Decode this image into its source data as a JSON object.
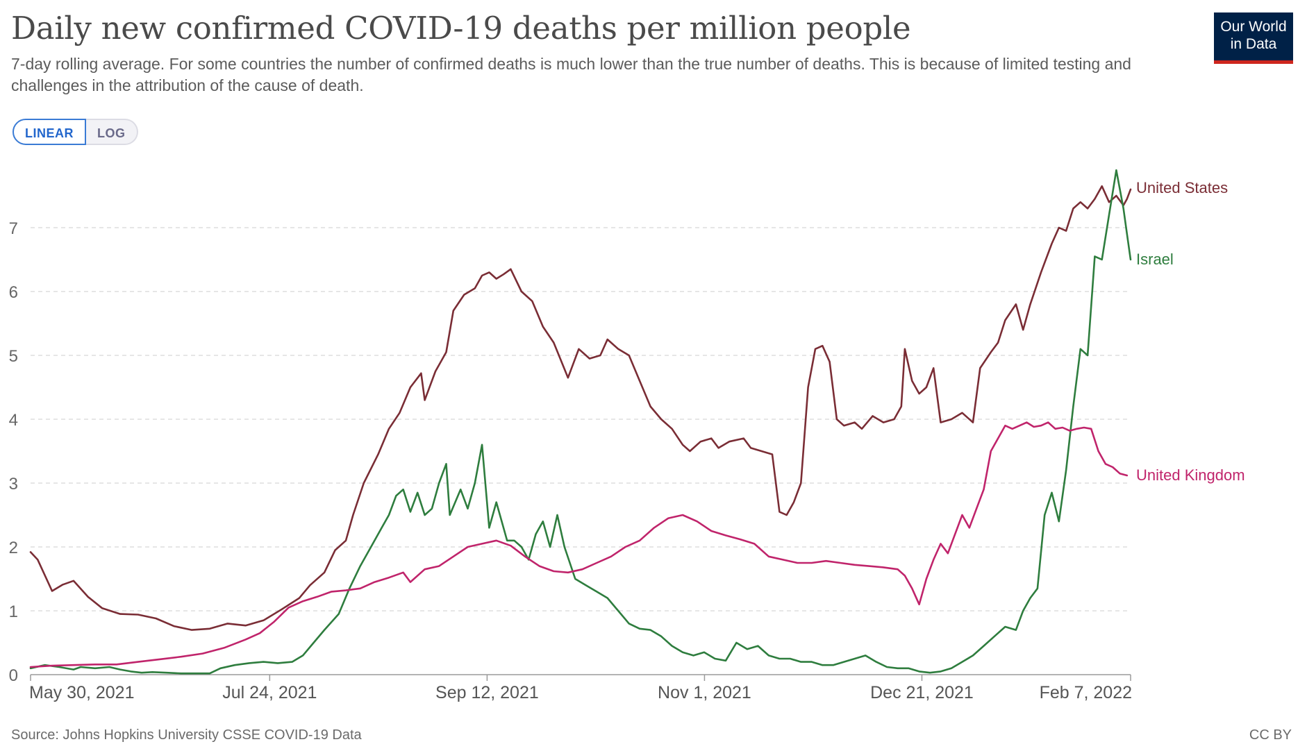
{
  "header": {
    "title": "Daily new confirmed COVID-19 deaths per million people",
    "subtitle": "7-day rolling average. For some countries the number of confirmed deaths is much lower than the true number of deaths. This is because of limited testing and challenges in the attribution of the cause of death.",
    "logo_line1": "Our World",
    "logo_line2": "in Data"
  },
  "controls": {
    "linear_label": "LINEAR",
    "log_label": "LOG",
    "selected": "LINEAR"
  },
  "footer": {
    "source": "Source: Johns Hopkins University CSSE COVID-19 Data",
    "license": "CC BY"
  },
  "chart_data": {
    "type": "line",
    "title": "Daily new confirmed COVID-19 deaths per million people",
    "x_tick_labels": [
      "May 30, 2021",
      "Jul 24, 2021",
      "Sep 12, 2021",
      "Nov 1, 2021",
      "Dec 21, 2021",
      "Feb 7, 2022"
    ],
    "x_tick_day_index": [
      0,
      55,
      105,
      155,
      205,
      253
    ],
    "xlim_day_index": [
      0,
      253
    ],
    "y_ticks": [
      0,
      1,
      2,
      3,
      4,
      5,
      6,
      7
    ],
    "ylim": [
      0,
      7.8
    ],
    "grid": "horizontal-dashed",
    "legend": "inline-right",
    "series": [
      {
        "name": "United States",
        "color": "#7a2d35",
        "points": [
          [
            0,
            1.92
          ],
          [
            2,
            1.8
          ],
          [
            6,
            1.31
          ],
          [
            9,
            1.41
          ],
          [
            12,
            1.47
          ],
          [
            16,
            1.22
          ],
          [
            20,
            1.04
          ],
          [
            25,
            0.95
          ],
          [
            30,
            0.94
          ],
          [
            35,
            0.88
          ],
          [
            40,
            0.76
          ],
          [
            45,
            0.7
          ],
          [
            50,
            0.72
          ],
          [
            55,
            0.8
          ],
          [
            60,
            0.77
          ],
          [
            65,
            0.85
          ],
          [
            70,
            1.02
          ],
          [
            75,
            1.2
          ],
          [
            78,
            1.4
          ],
          [
            82,
            1.6
          ],
          [
            85,
            1.95
          ],
          [
            88,
            2.1
          ],
          [
            90,
            2.5
          ],
          [
            93,
            3.0
          ],
          [
            97,
            3.45
          ],
          [
            100,
            3.85
          ],
          [
            103,
            4.1
          ],
          [
            106,
            4.5
          ],
          [
            109,
            4.72
          ],
          [
            110,
            4.3
          ],
          [
            113,
            4.75
          ],
          [
            116,
            5.05
          ],
          [
            118,
            5.7
          ],
          [
            121,
            5.95
          ],
          [
            124,
            6.05
          ],
          [
            126,
            6.25
          ],
          [
            128,
            6.3
          ],
          [
            130,
            6.2
          ],
          [
            132,
            6.27
          ],
          [
            134,
            6.35
          ],
          [
            137,
            6.0
          ],
          [
            140,
            5.85
          ],
          [
            143,
            5.45
          ],
          [
            146,
            5.2
          ],
          [
            150,
            4.65
          ],
          [
            153,
            5.1
          ],
          [
            156,
            4.95
          ],
          [
            159,
            5.0
          ],
          [
            161,
            5.25
          ],
          [
            164,
            5.1
          ],
          [
            167,
            5.0
          ],
          [
            170,
            4.6
          ],
          [
            173,
            4.2
          ],
          [
            176,
            4.0
          ],
          [
            179,
            3.85
          ],
          [
            182,
            3.6
          ],
          [
            184,
            3.5
          ],
          [
            187,
            3.65
          ],
          [
            190,
            3.7
          ],
          [
            192,
            3.55
          ],
          [
            195,
            3.65
          ],
          [
            199,
            3.7
          ],
          [
            201,
            3.55
          ],
          [
            204,
            3.5
          ],
          [
            207,
            3.45
          ],
          [
            209,
            2.55
          ],
          [
            211,
            2.5
          ],
          [
            213,
            2.7
          ],
          [
            215,
            3.0
          ],
          [
            217,
            4.5
          ],
          [
            219,
            5.1
          ],
          [
            221,
            5.15
          ],
          [
            223,
            4.9
          ],
          [
            225,
            4.0
          ],
          [
            227,
            3.9
          ],
          [
            230,
            3.95
          ],
          [
            232,
            3.85
          ],
          [
            235,
            4.05
          ],
          [
            238,
            3.95
          ],
          [
            241,
            4.0
          ],
          [
            243,
            4.2
          ],
          [
            244,
            5.1
          ],
          [
            246,
            4.6
          ],
          [
            248,
            4.4
          ],
          [
            250,
            4.5
          ],
          [
            252,
            4.8
          ],
          [
            254,
            3.95
          ],
          [
            257,
            4.0
          ],
          [
            260,
            4.1
          ],
          [
            263,
            3.95
          ],
          [
            265,
            4.8
          ],
          [
            268,
            5.05
          ],
          [
            270,
            5.2
          ],
          [
            272,
            5.55
          ],
          [
            275,
            5.8
          ],
          [
            277,
            5.4
          ],
          [
            279,
            5.8
          ],
          [
            282,
            6.3
          ],
          [
            285,
            6.75
          ],
          [
            287,
            7.0
          ],
          [
            289,
            6.95
          ],
          [
            291,
            7.3
          ],
          [
            293,
            7.4
          ],
          [
            295,
            7.3
          ],
          [
            297,
            7.45
          ],
          [
            299,
            7.65
          ],
          [
            301,
            7.4
          ],
          [
            303,
            7.5
          ],
          [
            305,
            7.35
          ],
          [
            306,
            7.45
          ],
          [
            307,
            7.6
          ]
        ]
      },
      {
        "name": "Israel",
        "color": "#2e7d3e",
        "points": [
          [
            0,
            0.1
          ],
          [
            4,
            0.15
          ],
          [
            8,
            0.12
          ],
          [
            12,
            0.08
          ],
          [
            14,
            0.12
          ],
          [
            18,
            0.1
          ],
          [
            22,
            0.12
          ],
          [
            25,
            0.08
          ],
          [
            28,
            0.05
          ],
          [
            31,
            0.03
          ],
          [
            34,
            0.04
          ],
          [
            38,
            0.03
          ],
          [
            42,
            0.02
          ],
          [
            46,
            0.02
          ],
          [
            50,
            0.02
          ],
          [
            53,
            0.1
          ],
          [
            57,
            0.15
          ],
          [
            61,
            0.18
          ],
          [
            65,
            0.2
          ],
          [
            69,
            0.18
          ],
          [
            73,
            0.2
          ],
          [
            76,
            0.3
          ],
          [
            79,
            0.5
          ],
          [
            82,
            0.7
          ],
          [
            86,
            0.95
          ],
          [
            89,
            1.35
          ],
          [
            92,
            1.7
          ],
          [
            95,
            2.0
          ],
          [
            98,
            2.3
          ],
          [
            100,
            2.5
          ],
          [
            102,
            2.8
          ],
          [
            104,
            2.9
          ],
          [
            106,
            2.55
          ],
          [
            108,
            2.85
          ],
          [
            110,
            2.5
          ],
          [
            112,
            2.6
          ],
          [
            114,
            3.0
          ],
          [
            116,
            3.3
          ],
          [
            117,
            2.5
          ],
          [
            120,
            2.9
          ],
          [
            122,
            2.6
          ],
          [
            124,
            3.0
          ],
          [
            126,
            3.6
          ],
          [
            128,
            2.3
          ],
          [
            130,
            2.7
          ],
          [
            133,
            2.1
          ],
          [
            135,
            2.1
          ],
          [
            137,
            2.0
          ],
          [
            139,
            1.8
          ],
          [
            141,
            2.2
          ],
          [
            143,
            2.4
          ],
          [
            145,
            2.0
          ],
          [
            147,
            2.5
          ],
          [
            149,
            2.0
          ],
          [
            152,
            1.5
          ],
          [
            155,
            1.4
          ],
          [
            158,
            1.3
          ],
          [
            161,
            1.2
          ],
          [
            164,
            1.0
          ],
          [
            167,
            0.8
          ],
          [
            170,
            0.72
          ],
          [
            173,
            0.7
          ],
          [
            176,
            0.6
          ],
          [
            179,
            0.45
          ],
          [
            182,
            0.35
          ],
          [
            185,
            0.3
          ],
          [
            188,
            0.35
          ],
          [
            191,
            0.25
          ],
          [
            194,
            0.22
          ],
          [
            197,
            0.5
          ],
          [
            200,
            0.4
          ],
          [
            203,
            0.45
          ],
          [
            206,
            0.3
          ],
          [
            209,
            0.25
          ],
          [
            212,
            0.25
          ],
          [
            215,
            0.2
          ],
          [
            218,
            0.2
          ],
          [
            221,
            0.15
          ],
          [
            224,
            0.15
          ],
          [
            227,
            0.2
          ],
          [
            230,
            0.25
          ],
          [
            233,
            0.3
          ],
          [
            236,
            0.2
          ],
          [
            239,
            0.12
          ],
          [
            242,
            0.1
          ],
          [
            245,
            0.1
          ],
          [
            248,
            0.05
          ],
          [
            251,
            0.03
          ],
          [
            254,
            0.05
          ],
          [
            257,
            0.1
          ],
          [
            260,
            0.2
          ],
          [
            263,
            0.3
          ],
          [
            266,
            0.45
          ],
          [
            269,
            0.6
          ],
          [
            272,
            0.75
          ],
          [
            275,
            0.7
          ],
          [
            277,
            1.0
          ],
          [
            279,
            1.2
          ],
          [
            281,
            1.35
          ],
          [
            283,
            2.5
          ],
          [
            285,
            2.85
          ],
          [
            287,
            2.4
          ],
          [
            289,
            3.2
          ],
          [
            291,
            4.2
          ],
          [
            293,
            5.1
          ],
          [
            295,
            5.0
          ],
          [
            297,
            6.55
          ],
          [
            299,
            6.5
          ],
          [
            301,
            7.2
          ],
          [
            303,
            7.9
          ],
          [
            305,
            7.3
          ],
          [
            306,
            6.9
          ],
          [
            307,
            6.5
          ]
        ]
      },
      {
        "name": "United Kingdom",
        "color": "#c0246b",
        "points": [
          [
            0,
            0.12
          ],
          [
            6,
            0.14
          ],
          [
            12,
            0.15
          ],
          [
            18,
            0.16
          ],
          [
            24,
            0.16
          ],
          [
            30,
            0.2
          ],
          [
            36,
            0.24
          ],
          [
            42,
            0.28
          ],
          [
            48,
            0.33
          ],
          [
            54,
            0.42
          ],
          [
            60,
            0.55
          ],
          [
            64,
            0.65
          ],
          [
            68,
            0.83
          ],
          [
            72,
            1.05
          ],
          [
            76,
            1.15
          ],
          [
            80,
            1.22
          ],
          [
            84,
            1.3
          ],
          [
            88,
            1.32
          ],
          [
            92,
            1.35
          ],
          [
            96,
            1.45
          ],
          [
            100,
            1.52
          ],
          [
            104,
            1.6
          ],
          [
            106,
            1.45
          ],
          [
            110,
            1.65
          ],
          [
            114,
            1.7
          ],
          [
            118,
            1.85
          ],
          [
            122,
            2.0
          ],
          [
            126,
            2.05
          ],
          [
            130,
            2.1
          ],
          [
            134,
            2.02
          ],
          [
            138,
            1.85
          ],
          [
            142,
            1.7
          ],
          [
            146,
            1.62
          ],
          [
            150,
            1.6
          ],
          [
            154,
            1.65
          ],
          [
            158,
            1.75
          ],
          [
            162,
            1.85
          ],
          [
            166,
            2.0
          ],
          [
            170,
            2.1
          ],
          [
            174,
            2.3
          ],
          [
            178,
            2.45
          ],
          [
            182,
            2.5
          ],
          [
            186,
            2.4
          ],
          [
            190,
            2.25
          ],
          [
            194,
            2.18
          ],
          [
            198,
            2.12
          ],
          [
            202,
            2.05
          ],
          [
            206,
            1.85
          ],
          [
            210,
            1.8
          ],
          [
            214,
            1.75
          ],
          [
            218,
            1.75
          ],
          [
            222,
            1.78
          ],
          [
            226,
            1.75
          ],
          [
            230,
            1.72
          ],
          [
            234,
            1.7
          ],
          [
            238,
            1.68
          ],
          [
            242,
            1.65
          ],
          [
            244,
            1.55
          ],
          [
            246,
            1.35
          ],
          [
            248,
            1.1
          ],
          [
            250,
            1.5
          ],
          [
            252,
            1.8
          ],
          [
            254,
            2.05
          ],
          [
            256,
            1.9
          ],
          [
            258,
            2.2
          ],
          [
            260,
            2.5
          ],
          [
            262,
            2.3
          ],
          [
            264,
            2.6
          ],
          [
            266,
            2.9
          ],
          [
            268,
            3.5
          ],
          [
            270,
            3.7
          ],
          [
            272,
            3.9
          ],
          [
            274,
            3.85
          ],
          [
            276,
            3.9
          ],
          [
            278,
            3.95
          ],
          [
            280,
            3.88
          ],
          [
            282,
            3.9
          ],
          [
            284,
            3.95
          ],
          [
            286,
            3.85
          ],
          [
            288,
            3.87
          ],
          [
            290,
            3.82
          ],
          [
            292,
            3.85
          ],
          [
            294,
            3.87
          ],
          [
            296,
            3.85
          ],
          [
            298,
            3.5
          ],
          [
            300,
            3.3
          ],
          [
            302,
            3.25
          ],
          [
            304,
            3.15
          ],
          [
            306,
            3.12
          ]
        ]
      }
    ]
  }
}
